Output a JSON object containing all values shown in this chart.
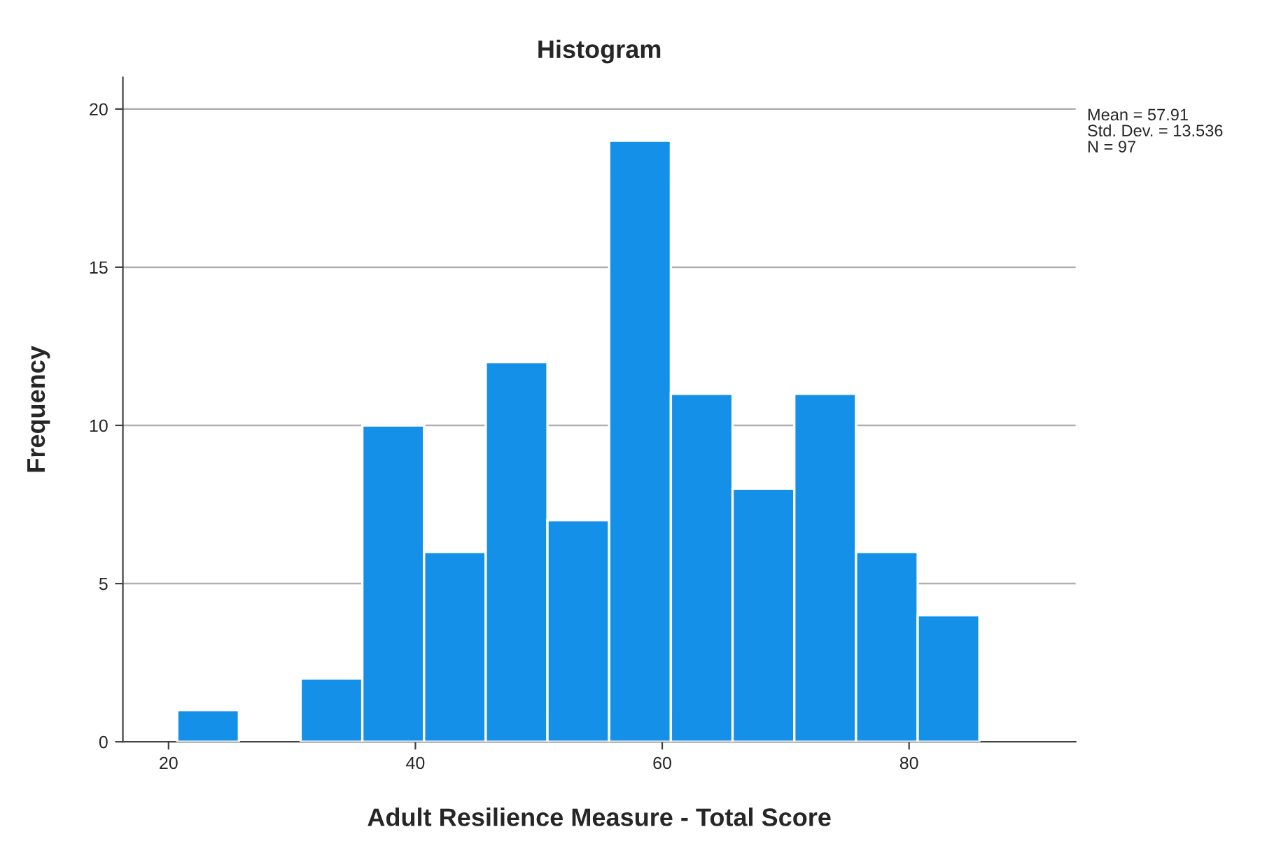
{
  "chart_data": {
    "type": "histogram",
    "title": "Histogram",
    "xlabel": "Adult Resilience Measure - Total Score",
    "ylabel": "Frequency",
    "bins": [
      20.7,
      25.7,
      30.7,
      35.7,
      40.7,
      45.7,
      50.7,
      55.7,
      60.7,
      65.7,
      70.7,
      75.7,
      80.7,
      85.7
    ],
    "values": [
      1,
      0,
      2,
      10,
      6,
      12,
      7,
      19,
      11,
      8,
      11,
      6,
      4
    ],
    "color": "#1490e8",
    "xlim": [
      16.3,
      93.5
    ],
    "xticks": [
      20,
      40,
      60,
      80
    ],
    "ylim": [
      0,
      21
    ],
    "yticks": [
      0,
      5,
      10,
      15,
      20
    ],
    "grid": "y",
    "annotations": [
      "Mean = 57.91",
      "Std. Dev. = 13.536",
      "N = 97"
    ]
  }
}
